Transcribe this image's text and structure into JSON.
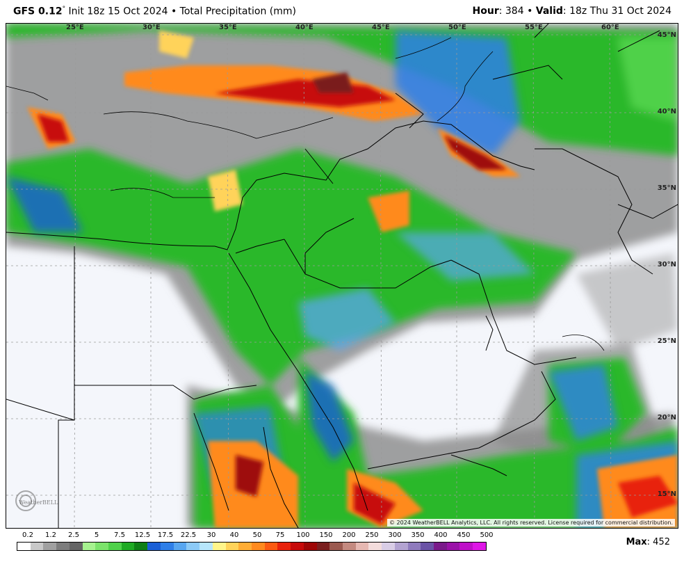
{
  "header": {
    "model": "GFS 0.12",
    "degree_symbol": "°",
    "init_text": "Init 18z 15 Oct 2024 • Total Precipitation (mm)",
    "hour_label": "Hour",
    "hour_value": ": 384 • ",
    "valid_label": "Valid",
    "valid_value": ": 18z Thu 31 Oct 2024"
  },
  "map": {
    "lon_labels": [
      "25°E",
      "30°E",
      "35°E",
      "40°E",
      "45°E",
      "50°E",
      "55°E",
      "60°E"
    ],
    "lat_labels": [
      "45°N",
      "40°N",
      "35°N",
      "30°N",
      "25°N",
      "20°N",
      "15°N"
    ],
    "copyright": "© 2024 WeatherBELL Analytics, LLC. All rights reserved. License required for commercial distribution.",
    "logo_text": "WeatherBELL"
  },
  "legend": {
    "labels": [
      "0.2",
      "1.2",
      "2.5",
      "5",
      "7.5",
      "12.5",
      "17.5",
      "22.5",
      "30",
      "40",
      "50",
      "75",
      "100",
      "150",
      "200",
      "250",
      "300",
      "350",
      "400",
      "450",
      "500"
    ],
    "colors": [
      "#ffffff",
      "#c8c8c8",
      "#a0a0a0",
      "#7d7d7d",
      "#646464",
      "#a6f28f",
      "#7ce36b",
      "#4fd14a",
      "#1faa24",
      "#0f7f16",
      "#1a5fd6",
      "#2f7fe8",
      "#58a6f0",
      "#8ccaf7",
      "#b7e6fb",
      "#fff58a",
      "#ffd35a",
      "#ffad35",
      "#ff8a1e",
      "#fb5a12",
      "#e8220c",
      "#c70b0b",
      "#9e0707",
      "#7a1f1f",
      "#9b5a50",
      "#c48a80",
      "#e6b8b2",
      "#f3dcdc",
      "#d9cde6",
      "#b3a3d1",
      "#8f7bbd",
      "#6b53a6",
      "#7a1a8a",
      "#9a12a8",
      "#be10c8",
      "#de16e6"
    ]
  },
  "max": {
    "label": "Max",
    "value": ": 452"
  }
}
